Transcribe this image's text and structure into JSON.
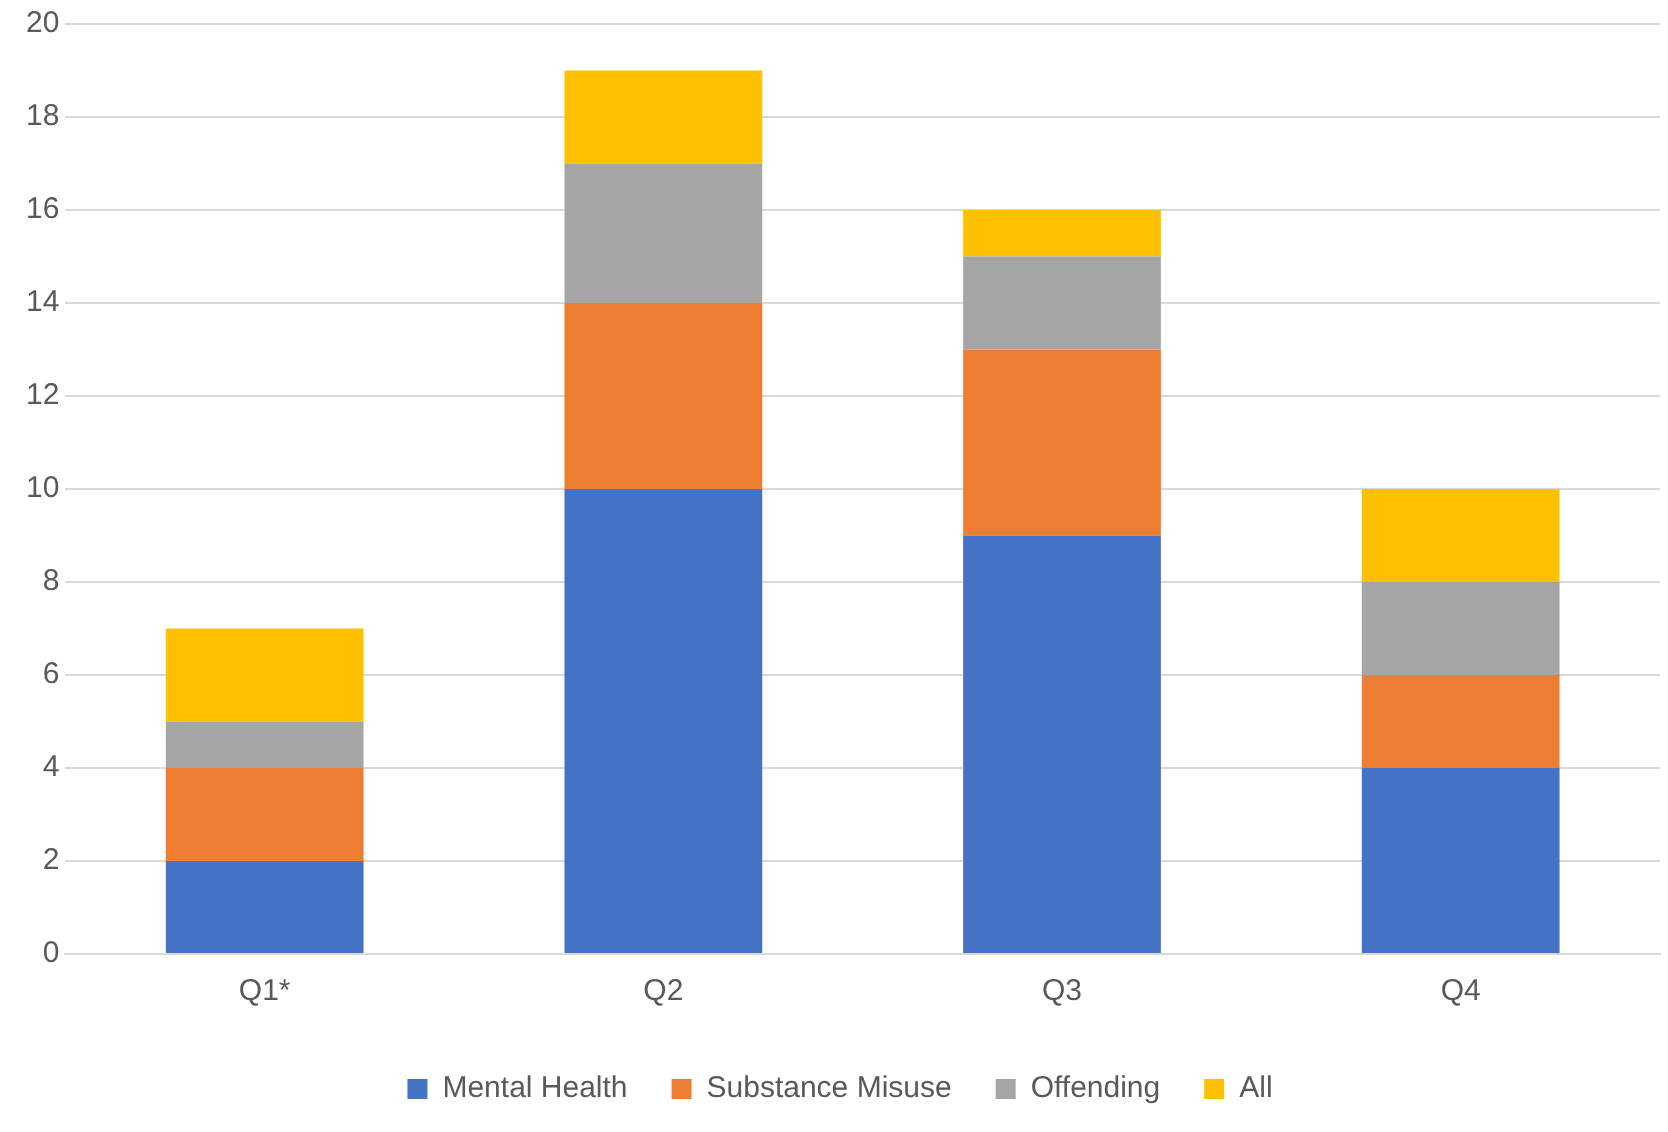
{
  "chart_data": {
    "type": "bar",
    "stacked": true,
    "categories": [
      "Q1*",
      "Q2",
      "Q3",
      "Q4"
    ],
    "series": [
      {
        "name": "Mental Health",
        "color": "#4472c4",
        "values": [
          2,
          10,
          9,
          4
        ]
      },
      {
        "name": "Substance Misuse",
        "color": "#ed7d31",
        "values": [
          2,
          4,
          4,
          2
        ]
      },
      {
        "name": "Offending",
        "color": "#a5a5a5",
        "values": [
          1,
          3,
          2,
          2
        ]
      },
      {
        "name": "All",
        "color": "#ffc000",
        "values": [
          2,
          2,
          1,
          2
        ]
      }
    ],
    "ylim": [
      0,
      20
    ],
    "yticks": [
      0,
      2,
      4,
      6,
      8,
      10,
      12,
      14,
      16,
      18,
      20
    ],
    "grid": "y",
    "legend": "bottom"
  }
}
